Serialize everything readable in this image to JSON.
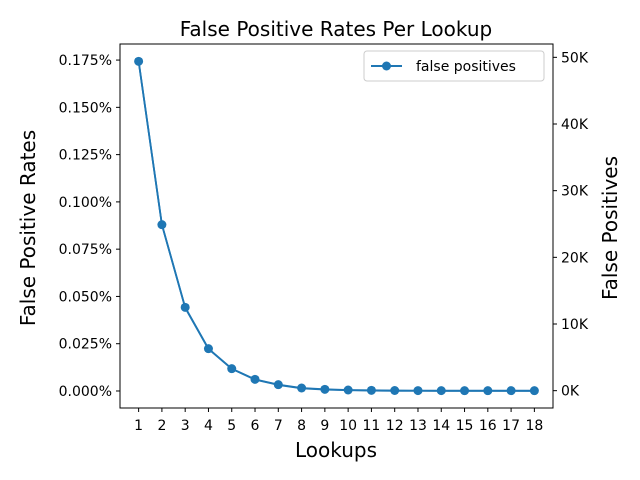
{
  "chart_data": {
    "type": "line",
    "title": "False Positive Rates Per Lookup",
    "xlabel": "Lookups",
    "ylabel": "False Positive Rates",
    "y2label": "False Positives",
    "x": [
      1,
      2,
      3,
      4,
      5,
      6,
      7,
      8,
      9,
      10,
      11,
      12,
      13,
      14,
      15,
      16,
      17,
      18
    ],
    "x_tick_labels": [
      "1",
      "2",
      "3",
      "4",
      "5",
      "6",
      "7",
      "8",
      "9",
      "10",
      "11",
      "12",
      "13",
      "14",
      "15",
      "16",
      "17",
      "18"
    ],
    "xlim": [
      0.2,
      18.8
    ],
    "ylim": [
      -0.009,
      0.1835
    ],
    "y_ticks": [
      0,
      0.025,
      0.05,
      0.075,
      0.1,
      0.125,
      0.15,
      0.175
    ],
    "y_tick_labels": [
      "0.000%",
      "0.025%",
      "0.050%",
      "0.075%",
      "0.100%",
      "0.125%",
      "0.150%",
      "0.175%"
    ],
    "y2lim": [
      -2600,
      52000
    ],
    "y2_ticks": [
      0,
      10000,
      20000,
      30000,
      40000,
      50000
    ],
    "y2_tick_labels": [
      "0K",
      "10K",
      "20K",
      "30K",
      "40K",
      "50K"
    ],
    "grid": false,
    "legend_position": "top-right",
    "series": [
      {
        "name": "false positives",
        "axis": "right",
        "color": "#1f77b4",
        "marker": "circle",
        "values": [
          49400,
          24900,
          12500,
          6300,
          3300,
          1700,
          900,
          400,
          200,
          100,
          50,
          25,
          12,
          6,
          3,
          2,
          1,
          0
        ]
      },
      {
        "axis": "left",
        "color": "#1f77b4",
        "marker": "none",
        "values": [
          0.1745,
          0.088,
          0.044,
          0.0222,
          0.0117,
          0.006,
          0.0032,
          0.0014,
          0.0007,
          0.0004,
          0.0002,
          0.0001,
          5e-05,
          2e-05,
          1e-05,
          5e-06,
          2e-06,
          1e-06
        ]
      }
    ]
  }
}
